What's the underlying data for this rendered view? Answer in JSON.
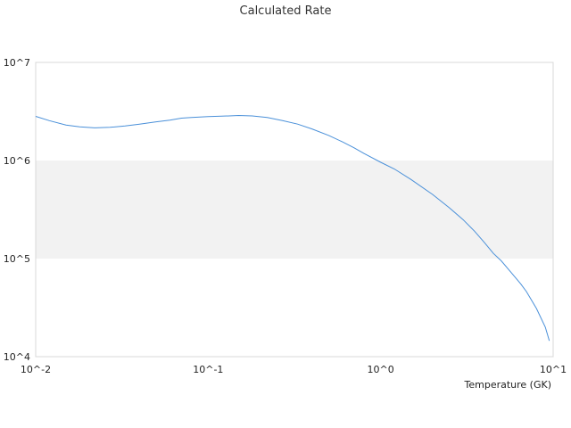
{
  "chart_data": {
    "type": "line",
    "title": "Calculated Rate",
    "xlabel": "Temperature (GK)",
    "ylabel": "",
    "x_scale": "log",
    "y_scale": "log",
    "xlim": [
      0.01,
      10
    ],
    "ylim": [
      10000,
      10000000
    ],
    "x_tick_labels": [
      "10^-2",
      "10^-1",
      "10^0",
      "10^1"
    ],
    "y_tick_labels": [
      "10^4",
      "10^5",
      "10^6",
      "10^7"
    ],
    "grid": false,
    "shaded_band": [
      100000,
      1000000
    ],
    "line_color": "#4a90d9",
    "band_color": "#f2f2f2",
    "series": [
      {
        "x": [
          0.01,
          0.012,
          0.015,
          0.018,
          0.022,
          0.027,
          0.033,
          0.04,
          0.05,
          0.06,
          0.07,
          0.08,
          0.1,
          0.12,
          0.15,
          0.18,
          0.22,
          0.27,
          0.33,
          0.4,
          0.5,
          0.6,
          0.7,
          0.8,
          1.0,
          1.2,
          1.5,
          2.0,
          2.5,
          3.0,
          3.5,
          4.0,
          4.5,
          5.0,
          5.5,
          6.0,
          6.5,
          7.0,
          8.0,
          9.0,
          9.5
        ],
        "y": [
          2820000,
          2550000,
          2300000,
          2200000,
          2150000,
          2180000,
          2250000,
          2350000,
          2480000,
          2580000,
          2700000,
          2750000,
          2800000,
          2830000,
          2880000,
          2850000,
          2750000,
          2550000,
          2350000,
          2100000,
          1800000,
          1550000,
          1350000,
          1180000,
          960000,
          820000,
          640000,
          450000,
          330000,
          250000,
          190000,
          145000,
          113000,
          95000,
          78000,
          65000,
          55000,
          46000,
          31000,
          20000,
          14500
        ]
      }
    ]
  }
}
